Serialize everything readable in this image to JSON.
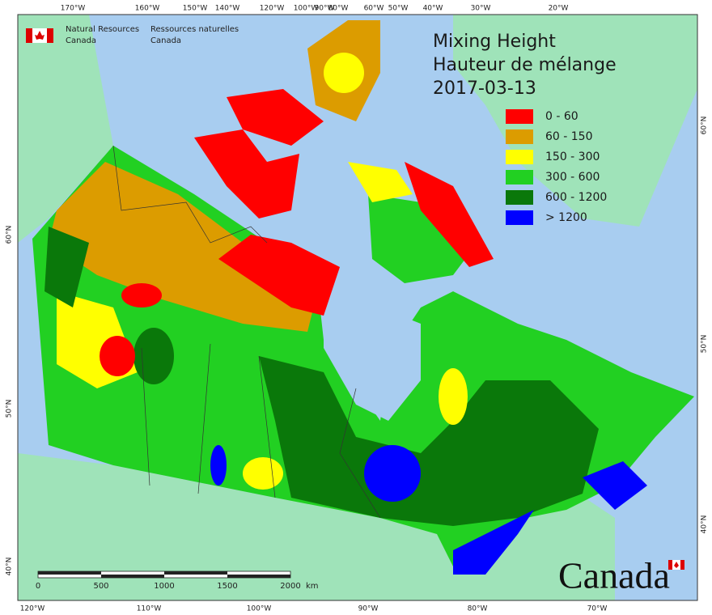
{
  "agency": {
    "en": [
      "Natural Resources",
      "Canada"
    ],
    "fr": [
      "Ressources naturelles",
      "Canada"
    ]
  },
  "title": [
    "Mixing Height",
    "Hauteur de mélange",
    "2017-03-13"
  ],
  "legend": [
    {
      "label": "0 - 60",
      "color": "#ff0000"
    },
    {
      "label": "60 - 150",
      "color": "#dc9c00"
    },
    {
      "label": "150 - 300",
      "color": "#ffff00"
    },
    {
      "label": "300 - 600",
      "color": "#22d022"
    },
    {
      "label": "600 - 1200",
      "color": "#0a780a"
    },
    {
      "label": "> 1200",
      "color": "#0000ff"
    }
  ],
  "graticule": {
    "top": [
      "170°W",
      "160°W",
      "150°W",
      "140°W",
      "120°W",
      "100°W",
      "90°W",
      "80°W",
      "60°W",
      "50°W",
      "40°W",
      "30°W",
      "20°W"
    ],
    "bottom": [
      "120°W",
      "110°W",
      "100°W",
      "90°W",
      "80°W",
      "70°W"
    ],
    "left": [
      "60°N",
      "50°N",
      "40°N"
    ],
    "right": [
      "60°N",
      "50°N",
      "40°N"
    ]
  },
  "scale_bar": {
    "labels": [
      "0",
      "500",
      "1000",
      "1500",
      "2000"
    ],
    "unit": "km"
  },
  "wordmark": "Canada"
}
